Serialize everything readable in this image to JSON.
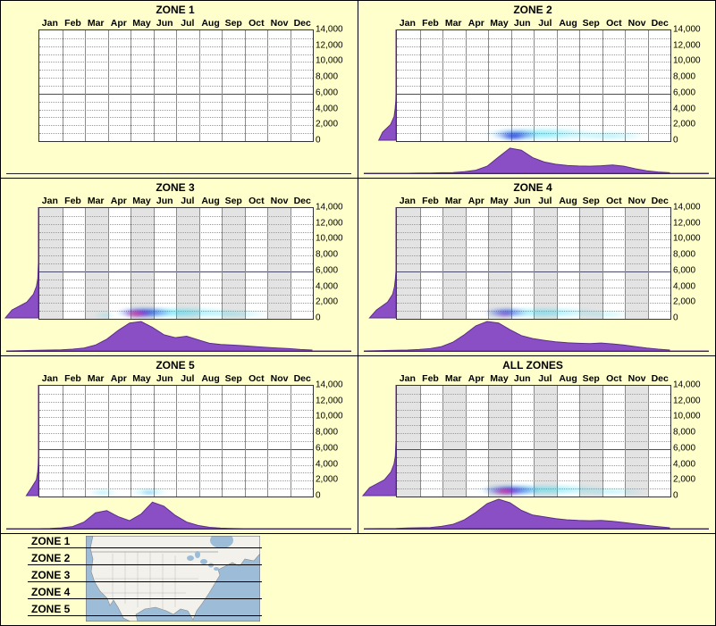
{
  "months": [
    "Jan",
    "Feb",
    "Mar",
    "Apr",
    "May",
    "Jun",
    "Jul",
    "Aug",
    "Sep",
    "Oct",
    "Nov",
    "Dec"
  ],
  "y_ticks": [
    "14,000",
    "12,000",
    "10,000",
    "8,000",
    "6,000",
    "4,000",
    "2,000",
    "0"
  ],
  "legend": {
    "items": [
      "ZONE 1",
      "ZONE 2",
      "ZONE 3",
      "ZONE 4",
      "ZONE 5"
    ]
  },
  "colors": {
    "background": "#FFFFCC",
    "density": "#8B4FC5",
    "density_edge": "#5B2D8E",
    "cyan": "#00D4F0",
    "blue": "#1430D8",
    "magenta": "#EE00BB",
    "core": "#FF4455",
    "ocean": "#9CBCD8",
    "land": "#F2F1EB"
  },
  "chart_data": [
    {
      "title": "ZONE 1",
      "type": "heatmap",
      "y_range": [
        0,
        14000
      ],
      "striped": false,
      "x_step_months": 0.5,
      "x_scale": 0,
      "y_scale": 0,
      "x_density": [
        0,
        0,
        0,
        0,
        0,
        0,
        0,
        0,
        0,
        0,
        0,
        0,
        0,
        0,
        0,
        0,
        0,
        0,
        0,
        0,
        0,
        0,
        0,
        0,
        0
      ],
      "y_density": [
        0,
        0,
        0,
        0,
        0,
        0,
        0,
        0,
        0,
        0,
        0,
        0,
        0,
        0,
        0
      ],
      "blobs": []
    },
    {
      "title": "ZONE 2",
      "type": "heatmap",
      "y_range": [
        0,
        14000
      ],
      "striped": false,
      "x_step_months": 0.5,
      "x_scale": 0.85,
      "y_scale": 0.55,
      "x_density": [
        0,
        0,
        0.01,
        0.01,
        0.02,
        0.03,
        0.06,
        0.12,
        0.28,
        0.65,
        1,
        0.92,
        0.62,
        0.45,
        0.36,
        0.31,
        0.29,
        0.28,
        0.3,
        0.33,
        0.28,
        0.18,
        0.1,
        0.05,
        0.02
      ],
      "y_density": [
        0.9,
        0.7,
        0.28,
        0.1,
        0.04,
        0.01,
        0,
        0,
        0,
        0,
        0,
        0,
        0,
        0,
        0
      ],
      "blobs": [
        {
          "x": 6.3,
          "y": 900,
          "rx": 3.6,
          "ry": 1100,
          "color": "cyan",
          "alpha": 0.5
        },
        {
          "x": 9.3,
          "y": 700,
          "rx": 2.4,
          "ry": 700,
          "color": "cyan",
          "alpha": 0.35
        },
        {
          "x": 5.2,
          "y": 800,
          "rx": 1.4,
          "ry": 900,
          "color": "blue",
          "alpha": 0.8
        },
        {
          "x": 5.1,
          "y": 600,
          "rx": 0.7,
          "ry": 450,
          "color": "blue",
          "alpha": 0.9
        }
      ]
    },
    {
      "title": "ZONE 3",
      "type": "heatmap",
      "y_range": [
        0,
        14000
      ],
      "striped": true,
      "x_step_months": 0.5,
      "x_scale": 1,
      "y_scale": 0.95,
      "x_density": [
        0.02,
        0.03,
        0.04,
        0.06,
        0.1,
        0.2,
        0.4,
        0.7,
        0.95,
        1,
        0.8,
        0.55,
        0.45,
        0.5,
        0.38,
        0.26,
        0.22,
        0.2,
        0.18,
        0.15,
        0.12,
        0.1,
        0.08,
        0.05,
        0.03
      ],
      "y_density": [
        1,
        0.8,
        0.35,
        0.15,
        0.06,
        0.02,
        0.01,
        0,
        0,
        0,
        0,
        0,
        0,
        0,
        0
      ],
      "blobs": [
        {
          "x": 6,
          "y": 800,
          "rx": 3.8,
          "ry": 900,
          "color": "cyan",
          "alpha": 0.55
        },
        {
          "x": 8.6,
          "y": 600,
          "rx": 2.2,
          "ry": 500,
          "color": "cyan",
          "alpha": 0.35
        },
        {
          "x": 2.9,
          "y": 500,
          "rx": 0.7,
          "ry": 350,
          "color": "cyan",
          "alpha": 0.4
        },
        {
          "x": 4.6,
          "y": 800,
          "rx": 1.7,
          "ry": 900,
          "color": "blue",
          "alpha": 0.9
        },
        {
          "x": 4.3,
          "y": 650,
          "rx": 0.9,
          "ry": 450,
          "color": "magenta",
          "alpha": 0.95
        },
        {
          "x": 4.2,
          "y": 600,
          "rx": 0.5,
          "ry": 280,
          "color": "core",
          "alpha": 0.9
        }
      ]
    },
    {
      "title": "ZONE 4",
      "type": "heatmap",
      "y_range": [
        0,
        14000
      ],
      "striped": true,
      "x_step_months": 0.5,
      "x_scale": 1,
      "y_scale": 0.8,
      "x_density": [
        0.02,
        0.03,
        0.05,
        0.08,
        0.15,
        0.3,
        0.55,
        0.85,
        1,
        0.95,
        0.72,
        0.52,
        0.42,
        0.36,
        0.31,
        0.28,
        0.26,
        0.25,
        0.27,
        0.24,
        0.2,
        0.15,
        0.1,
        0.06,
        0.03
      ],
      "y_density": [
        0.95,
        0.7,
        0.3,
        0.12,
        0.05,
        0.02,
        0,
        0,
        0,
        0,
        0,
        0,
        0,
        0,
        0
      ],
      "blobs": [
        {
          "x": 6.4,
          "y": 800,
          "rx": 3.8,
          "ry": 900,
          "color": "cyan",
          "alpha": 0.45
        },
        {
          "x": 9.2,
          "y": 600,
          "rx": 1.6,
          "ry": 450,
          "color": "cyan",
          "alpha": 0.3
        },
        {
          "x": 4.8,
          "y": 750,
          "rx": 1.3,
          "ry": 800,
          "color": "blue",
          "alpha": 0.8
        },
        {
          "x": 4.7,
          "y": 600,
          "rx": 0.6,
          "ry": 350,
          "color": "magenta",
          "alpha": 0.5
        }
      ]
    },
    {
      "title": "ZONE 5",
      "type": "heatmap",
      "y_range": [
        0,
        14000
      ],
      "striped": false,
      "x_step_months": 0.5,
      "x_scale": 0.9,
      "y_scale": 0.5,
      "x_density": [
        0,
        0.01,
        0.03,
        0.08,
        0.25,
        0.6,
        0.68,
        0.45,
        0.3,
        0.55,
        1,
        0.85,
        0.5,
        0.25,
        0.12,
        0.05,
        0.02,
        0.01,
        0,
        0,
        0,
        0,
        0,
        0,
        0
      ],
      "y_density": [
        0.7,
        0.4,
        0.12,
        0.04,
        0.01,
        0,
        0,
        0,
        0,
        0,
        0,
        0,
        0,
        0,
        0
      ],
      "blobs": [
        {
          "x": 2.8,
          "y": 500,
          "rx": 0.9,
          "ry": 400,
          "color": "cyan",
          "alpha": 0.45
        },
        {
          "x": 4.8,
          "y": 550,
          "rx": 1.2,
          "ry": 450,
          "color": "cyan",
          "alpha": 0.5
        },
        {
          "x": 4.8,
          "y": 450,
          "rx": 0.5,
          "ry": 250,
          "color": "blue",
          "alpha": 0.45
        }
      ]
    },
    {
      "title": "ALL ZONES",
      "type": "heatmap",
      "y_range": [
        0,
        14000
      ],
      "striped": true,
      "x_step_months": 0.5,
      "x_scale": 1,
      "y_scale": 0.95,
      "x_density": [
        0.01,
        0.02,
        0.03,
        0.04,
        0.08,
        0.15,
        0.3,
        0.55,
        0.85,
        1,
        0.88,
        0.62,
        0.46,
        0.4,
        0.34,
        0.3,
        0.28,
        0.27,
        0.28,
        0.25,
        0.21,
        0.16,
        0.11,
        0.07,
        0.03
      ],
      "y_density": [
        1,
        0.8,
        0.35,
        0.15,
        0.06,
        0.02,
        0.01,
        0,
        0,
        0,
        0,
        0,
        0,
        0,
        0
      ],
      "blobs": [
        {
          "x": 6.4,
          "y": 850,
          "rx": 4.2,
          "ry": 1000,
          "color": "cyan",
          "alpha": 0.5
        },
        {
          "x": 9.4,
          "y": 650,
          "rx": 2.2,
          "ry": 500,
          "color": "cyan",
          "alpha": 0.35
        },
        {
          "x": 5,
          "y": 800,
          "rx": 1.8,
          "ry": 950,
          "color": "blue",
          "alpha": 0.9
        },
        {
          "x": 4.8,
          "y": 650,
          "rx": 0.95,
          "ry": 450,
          "color": "magenta",
          "alpha": 0.95
        },
        {
          "x": 4.7,
          "y": 600,
          "rx": 0.5,
          "ry": 280,
          "color": "core",
          "alpha": 0.9
        }
      ]
    }
  ]
}
